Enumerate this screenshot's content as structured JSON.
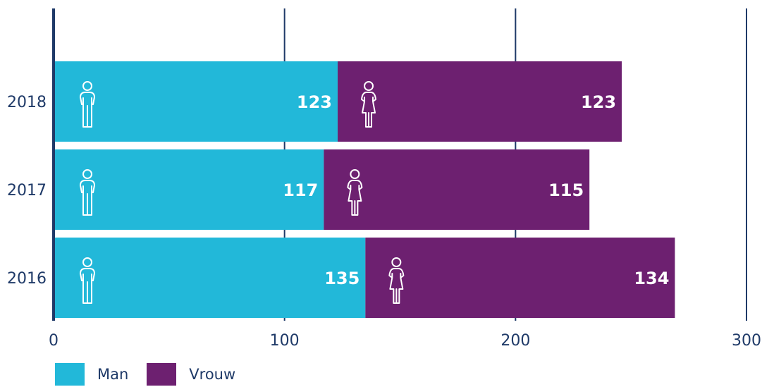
{
  "chart_data": {
    "type": "bar",
    "orientation": "horizontal",
    "stacked": true,
    "categories": [
      "2018",
      "2017",
      "2016"
    ],
    "series": [
      {
        "name": "Man",
        "values": [
          123,
          117,
          135
        ],
        "color": "#22b8d9",
        "icon": "male-person-icon"
      },
      {
        "name": "Vrouw",
        "values": [
          123,
          115,
          134
        ],
        "color": "#6d2070",
        "icon": "female-person-icon"
      }
    ],
    "xlim": [
      0,
      300
    ],
    "xticks": [
      "0",
      "100",
      "200",
      "300"
    ],
    "grid": true,
    "legend_position": "bottom-left",
    "colors": {
      "axis": "#1f3a68",
      "grid": "#1f3a68",
      "value_label": "#ffffff"
    }
  }
}
